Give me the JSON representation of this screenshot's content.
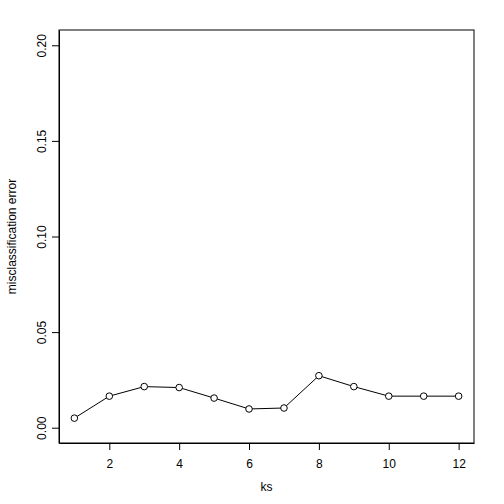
{
  "chart_data": {
    "type": "line",
    "x_label": "ks",
    "y_label": "misclassification error",
    "x": [
      1,
      2,
      3,
      4,
      5,
      6,
      7,
      8,
      9,
      10,
      11,
      12
    ],
    "values": [
      0.005,
      0.0165,
      0.0215,
      0.021,
      0.0155,
      0.0098,
      0.0103,
      0.0272,
      0.0215,
      0.0165,
      0.0165,
      0.0165
    ],
    "color": "#000000",
    "marker": "circle",
    "line_style": "solid",
    "xlim": [
      0.56,
      12.44
    ],
    "ylim": [
      -0.008,
      0.208
    ],
    "xticks": [
      2,
      4,
      6,
      8,
      10,
      12
    ],
    "yticks": [
      {
        "value": 0,
        "label": "0.00"
      },
      {
        "value": 0.05,
        "label": "0.05"
      },
      {
        "value": 0.1,
        "label": "0.10"
      },
      {
        "value": 0.15,
        "label": "0.15"
      },
      {
        "value": 0.2,
        "label": "0.20"
      }
    ]
  }
}
